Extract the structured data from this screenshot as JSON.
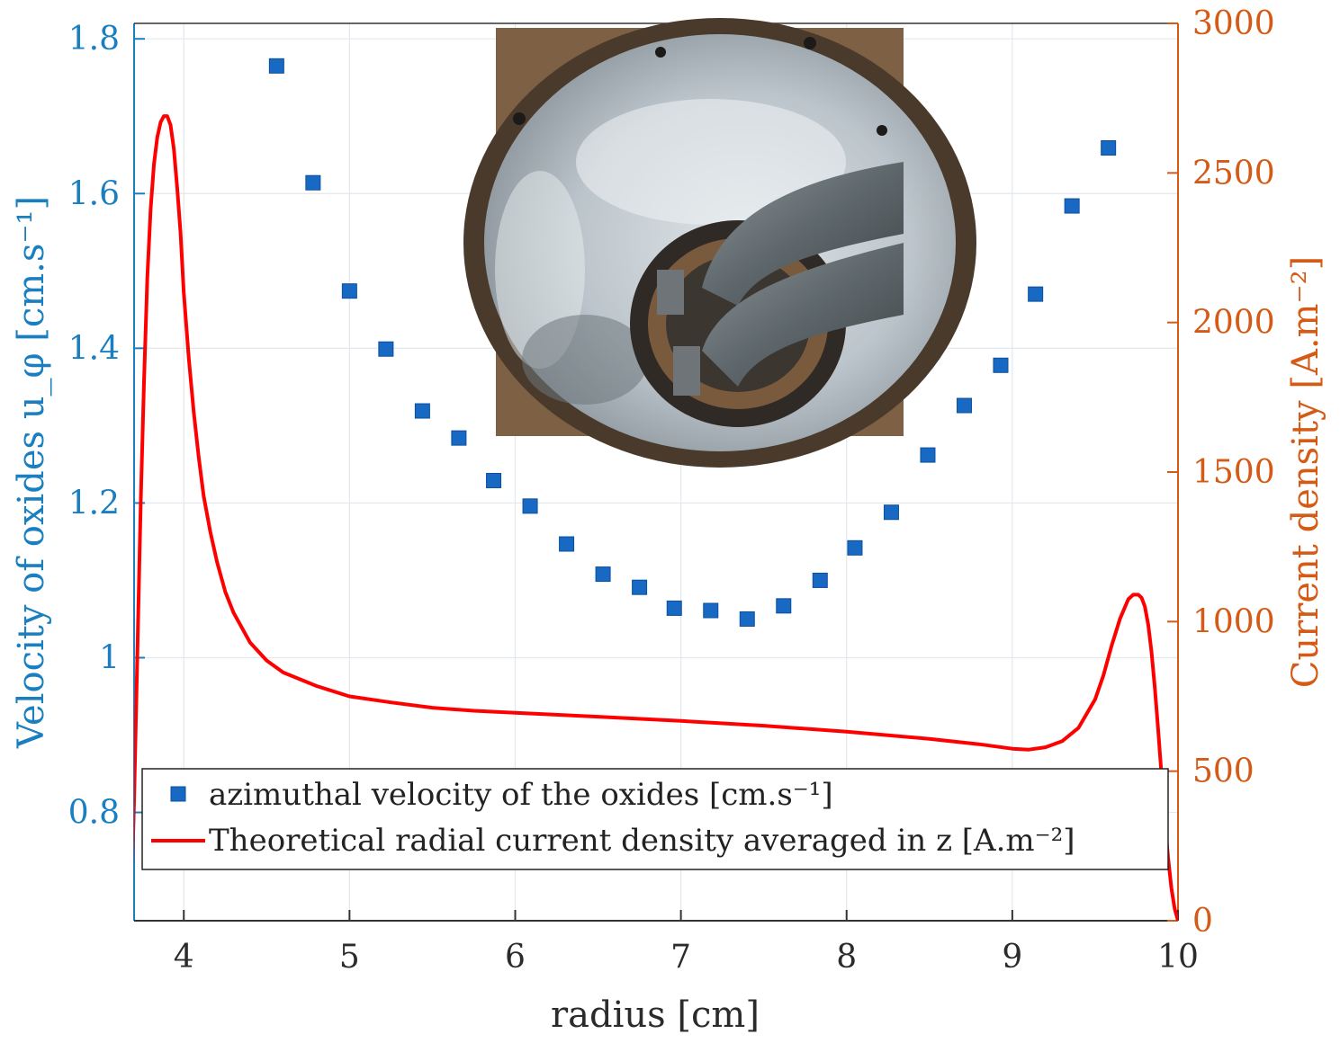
{
  "chart_data": {
    "type": "scatter",
    "xlabel": "radius [cm]",
    "ylabel_left": "Velocity of oxides u_φ [cm.s⁻¹]",
    "ylabel_right": "Current density [A.m⁻²]",
    "xlim": [
      3.7,
      10
    ],
    "ylim_left": [
      0.66,
      1.82
    ],
    "ylim_right": [
      0,
      3000
    ],
    "x_ticks": [
      "4",
      "5",
      "6",
      "7",
      "8",
      "9",
      "10"
    ],
    "y_left_ticks": [
      "0.8",
      "1",
      "1.2",
      "1.4",
      "1.6",
      "1.8"
    ],
    "y_right_ticks": [
      "0",
      "500",
      "1000",
      "1500",
      "2000",
      "2500",
      "3000"
    ],
    "grid": true,
    "legend_position": "bottom-left",
    "colors": {
      "left_axis": "#1a7fc0",
      "right_axis": "#d45a16",
      "markers": "#1769c4",
      "curve": "#ff0000",
      "grid": "#e3e8ee"
    },
    "series": [
      {
        "name": "azimuthal velocity of the oxides [cm.s⁻¹]",
        "axis": "left",
        "kind": "scatter",
        "x": [
          4.56,
          4.78,
          5.0,
          5.22,
          5.44,
          5.66,
          5.87,
          6.09,
          6.31,
          6.53,
          6.75,
          6.96,
          7.18,
          7.4,
          7.62,
          7.84,
          8.05,
          8.27,
          8.49,
          8.71,
          8.93,
          9.14,
          9.36,
          9.58
        ],
        "y": [
          1.765,
          1.614,
          1.474,
          1.399,
          1.319,
          1.284,
          1.229,
          1.196,
          1.147,
          1.108,
          1.091,
          1.064,
          1.061,
          1.05,
          1.067,
          1.1,
          1.142,
          1.188,
          1.262,
          1.326,
          1.378,
          1.47,
          1.584,
          1.659
        ]
      },
      {
        "name": "Theoretical radial current density averaged in z [A.m⁻²]",
        "axis": "right",
        "kind": "line",
        "x": [
          3.68,
          3.7,
          3.72,
          3.74,
          3.76,
          3.78,
          3.8,
          3.82,
          3.84,
          3.86,
          3.88,
          3.9,
          3.92,
          3.94,
          3.96,
          3.98,
          4.0,
          4.03,
          4.06,
          4.09,
          4.12,
          4.16,
          4.2,
          4.25,
          4.3,
          4.4,
          4.5,
          4.6,
          4.8,
          5.0,
          5.25,
          5.5,
          5.75,
          6.0,
          6.5,
          7.0,
          7.5,
          8.0,
          8.5,
          8.8,
          9.0,
          9.1,
          9.2,
          9.3,
          9.4,
          9.5,
          9.55,
          9.6,
          9.65,
          9.7,
          9.73,
          9.76,
          9.78,
          9.8,
          9.82,
          9.84,
          9.86,
          9.88,
          9.9,
          9.92,
          9.94,
          9.96,
          9.98,
          10.0
        ],
        "y": [
          0,
          400,
          900,
          1400,
          1800,
          2150,
          2380,
          2530,
          2620,
          2670,
          2690,
          2690,
          2660,
          2580,
          2450,
          2300,
          2100,
          1880,
          1700,
          1550,
          1420,
          1300,
          1200,
          1100,
          1030,
          930,
          870,
          830,
          785,
          750,
          730,
          712,
          702,
          695,
          682,
          668,
          652,
          632,
          608,
          590,
          575,
          572,
          580,
          600,
          645,
          740,
          820,
          920,
          1010,
          1075,
          1090,
          1090,
          1080,
          1050,
          990,
          900,
          780,
          640,
          490,
          340,
          210,
          110,
          40,
          0
        ]
      }
    ]
  },
  "legend": {
    "velocity_label": "azimuthal velocity of the oxides [cm.s⁻¹]",
    "current_label": "Theoretical radial current density averaged in z [A.m⁻²]"
  },
  "inset": {
    "icon": "photo-of-annular-channel-with-electrodes"
  }
}
